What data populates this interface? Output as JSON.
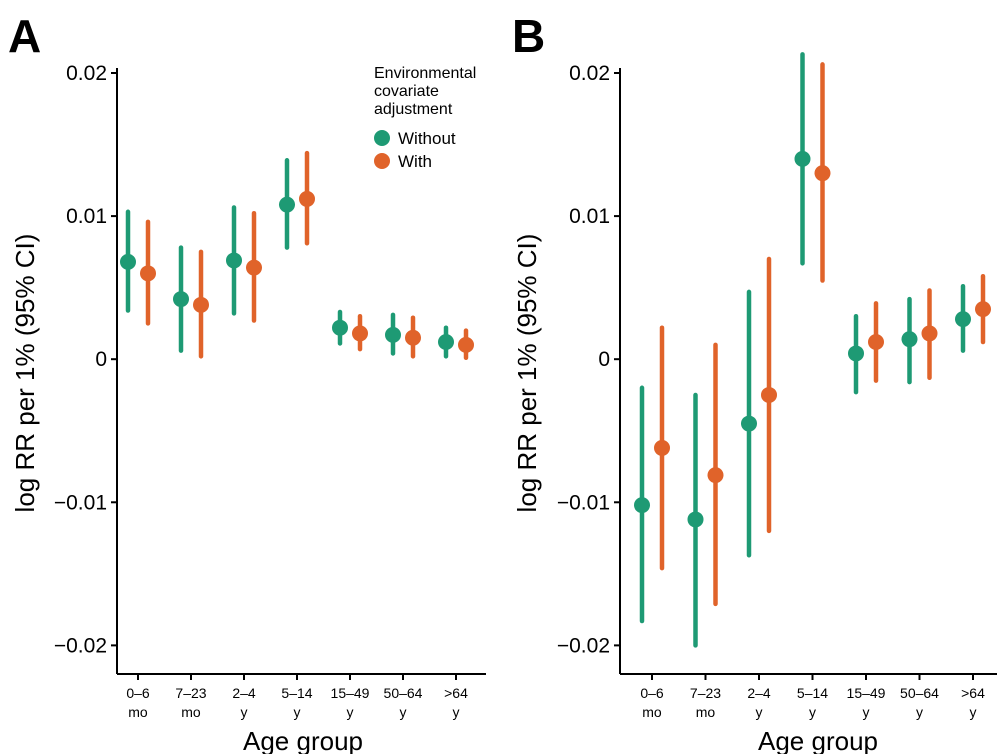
{
  "colors": {
    "without": "#1e9a74",
    "with": "#e0632a",
    "axis": "#000000"
  },
  "panels": [
    {
      "label": "A",
      "chart_data": {
        "type": "scatter",
        "xlabel": "Age group",
        "ylabel": "log RR per 1% (95% CI)",
        "ylim": [
          -0.022,
          0.02
        ],
        "yticks": [
          {
            "value": 0.02,
            "label": "0.02"
          },
          {
            "value": 0.01,
            "label": "0.01"
          },
          {
            "value": 0,
            "label": "0"
          },
          {
            "value": -0.01,
            "label": "−0.01"
          },
          {
            "value": -0.02,
            "label": "−0.02"
          }
        ],
        "categories": [
          {
            "line1": "0–6",
            "line2": "mo"
          },
          {
            "line1": "7–23",
            "line2": "mo"
          },
          {
            "line1": "2–4",
            "line2": "y"
          },
          {
            "line1": "5–14",
            "line2": "y"
          },
          {
            "line1": "15–49",
            "line2": "y"
          },
          {
            "line1": "50–64",
            "line2": "y"
          },
          {
            "line1": ">64",
            "line2": "y"
          }
        ],
        "series": [
          {
            "name": "Without",
            "key": "without",
            "values": [
              0.0068,
              0.0042,
              0.0069,
              0.0108,
              0.0022,
              0.0017,
              0.0012
            ],
            "lower": [
              0.0034,
              0.0006,
              0.0032,
              0.0078,
              0.0011,
              0.0004,
              0.0002
            ],
            "upper": [
              0.0103,
              0.0078,
              0.0106,
              0.0139,
              0.0033,
              0.0031,
              0.0022
            ]
          },
          {
            "name": "With",
            "key": "with",
            "values": [
              0.006,
              0.0038,
              0.0064,
              0.0112,
              0.0018,
              0.0015,
              0.001
            ],
            "lower": [
              0.0025,
              0.0002,
              0.0027,
              0.0081,
              0.0007,
              0.0002,
              0.0001
            ],
            "upper": [
              0.0096,
              0.0075,
              0.0102,
              0.0144,
              0.003,
              0.0029,
              0.002
            ]
          }
        ],
        "legend": {
          "title_lines": [
            "Environmental",
            "covariate",
            "adjustment"
          ],
          "position": "top-right"
        }
      }
    },
    {
      "label": "B",
      "chart_data": {
        "type": "scatter",
        "xlabel": "Age group",
        "ylabel": "log RR per 1% (95% CI)",
        "ylim": [
          -0.022,
          0.02
        ],
        "yticks": [
          {
            "value": 0.02,
            "label": "0.02"
          },
          {
            "value": 0.01,
            "label": "0.01"
          },
          {
            "value": 0,
            "label": "0"
          },
          {
            "value": -0.01,
            "label": "−0.01"
          },
          {
            "value": -0.02,
            "label": "−0.02"
          }
        ],
        "categories": [
          {
            "line1": "0–6",
            "line2": "mo"
          },
          {
            "line1": "7–23",
            "line2": "mo"
          },
          {
            "line1": "2–4",
            "line2": "y"
          },
          {
            "line1": "5–14",
            "line2": "y"
          },
          {
            "line1": "15–49",
            "line2": "y"
          },
          {
            "line1": "50–64",
            "line2": "y"
          },
          {
            "line1": ">64",
            "line2": "y"
          }
        ],
        "series": [
          {
            "name": "Without",
            "key": "without",
            "values": [
              -0.0102,
              -0.0112,
              -0.0045,
              0.014,
              0.0004,
              0.0014,
              0.0028
            ],
            "lower": [
              -0.0183,
              -0.02,
              -0.0137,
              0.0067,
              -0.0023,
              -0.0016,
              0.0006
            ],
            "upper": [
              -0.002,
              -0.0025,
              0.0047,
              0.0213,
              0.003,
              0.0042,
              0.0051
            ]
          },
          {
            "name": "With",
            "key": "with",
            "values": [
              -0.0062,
              -0.0081,
              -0.0025,
              0.013,
              0.0012,
              0.0018,
              0.0035
            ],
            "lower": [
              -0.0146,
              -0.0171,
              -0.012,
              0.0055,
              -0.0015,
              -0.0013,
              0.0012
            ],
            "upper": [
              0.0022,
              0.001,
              0.007,
              0.0206,
              0.0039,
              0.0048,
              0.0058
            ]
          }
        ]
      }
    }
  ]
}
